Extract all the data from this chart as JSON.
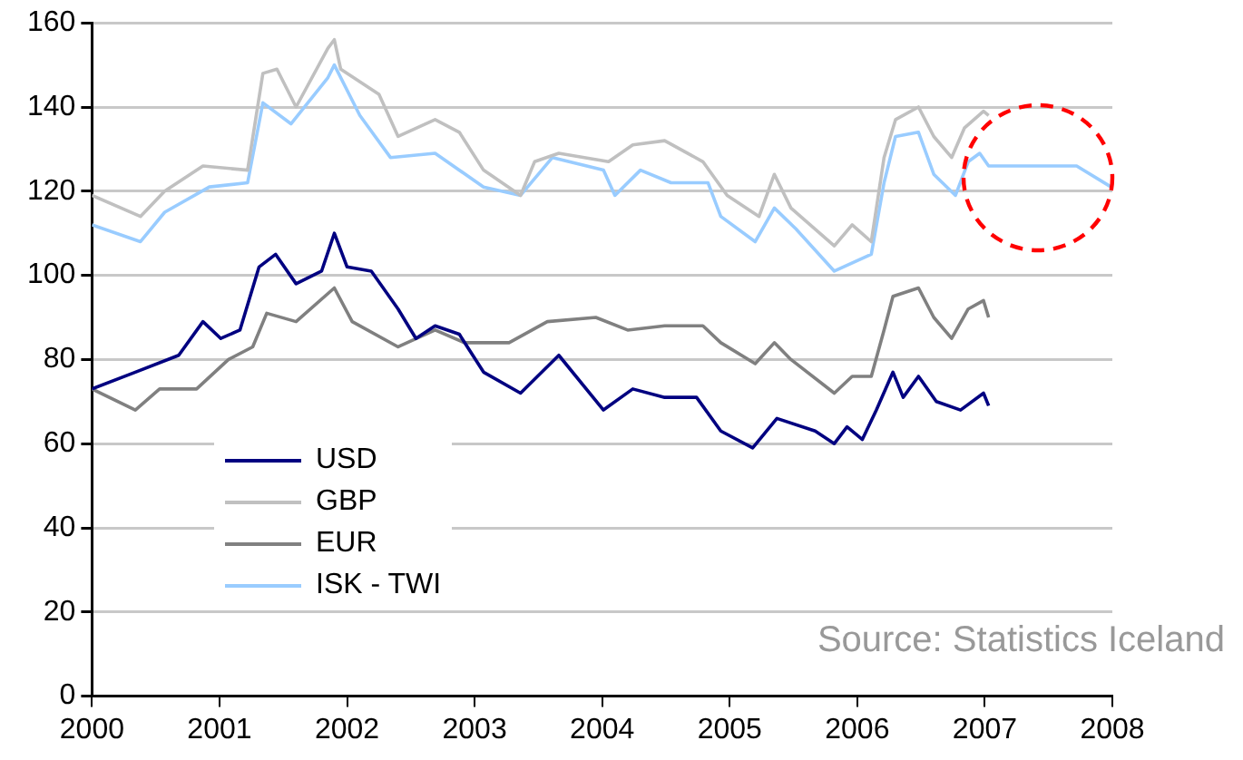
{
  "chart_data": {
    "type": "line",
    "xlim": [
      2000,
      2008
    ],
    "xticks": [
      2000,
      2001,
      2002,
      2003,
      2004,
      2005,
      2006,
      2007,
      2008
    ],
    "ylim": [
      0,
      160
    ],
    "yticks": [
      0,
      20,
      40,
      60,
      80,
      100,
      120,
      140,
      160
    ],
    "grid": "y",
    "legend": "bottom left",
    "marker": "none",
    "line_style": "solid",
    "annotations": [
      "Source: Statistics Iceland"
    ],
    "series": [
      {
        "name": "USD",
        "color": "#000080",
        "x": [
          2000,
          2000.34,
          2000.68,
          2000.87,
          2001.01,
          2001.16,
          2001.31,
          2001.44,
          2001.6,
          2001.8,
          2001.9,
          2002,
          2002.19,
          2002.4,
          2002.54,
          2002.69,
          2002.88,
          2003.07,
          2003.36,
          2003.66,
          2004.01,
          2004.24,
          2004.49,
          2004.74,
          2004.93,
          2005.18,
          2005.37,
          2005.67,
          2005.82,
          2005.92,
          2006.04,
          2006.15,
          2006.28,
          2006.36,
          2006.48,
          2006.62,
          2006.81,
          2006.99,
          2007.03
        ],
        "values": [
          73,
          77,
          81,
          89,
          85,
          87,
          102,
          105,
          98,
          101,
          110,
          102,
          101,
          92,
          85,
          88,
          86,
          77,
          72,
          81,
          68,
          73,
          71,
          71,
          63,
          59,
          66,
          63,
          60,
          64,
          61,
          68,
          77,
          71,
          76,
          70,
          68,
          72,
          69
        ]
      },
      {
        "name": "GBP",
        "color": "#c0c0c0",
        "x": [
          2000,
          2000.38,
          2000.57,
          2000.87,
          2001.22,
          2001.34,
          2001.45,
          2001.6,
          2001.85,
          2001.9,
          2001.95,
          2002.25,
          2002.4,
          2002.69,
          2002.88,
          2003.07,
          2003.36,
          2003.47,
          2003.66,
          2004.05,
          2004.24,
          2004.49,
          2004.79,
          2004.98,
          2005.23,
          2005.35,
          2005.48,
          2005.82,
          2005.96,
          2006.11,
          2006.21,
          2006.3,
          2006.48,
          2006.6,
          2006.74,
          2006.84,
          2006.99,
          2007.03
        ],
        "values": [
          119,
          114,
          120,
          126,
          125,
          148,
          149,
          140,
          154,
          156,
          149,
          143,
          133,
          137,
          134,
          125,
          119,
          127,
          129,
          127,
          131,
          132,
          127,
          119,
          114,
          124,
          116,
          107,
          112,
          108,
          128,
          137,
          140,
          133,
          128,
          135,
          139,
          138
        ]
      },
      {
        "name": "EUR",
        "color": "#808080",
        "x": [
          2000,
          2000.34,
          2000.53,
          2000.82,
          2001.07,
          2001.26,
          2001.37,
          2001.6,
          2001.9,
          2002.04,
          2002.4,
          2002.69,
          2002.92,
          2003.27,
          2003.57,
          2003.95,
          2004.2,
          2004.49,
          2004.79,
          2004.93,
          2005.2,
          2005.35,
          2005.48,
          2005.82,
          2005.96,
          2006.11,
          2006.21,
          2006.28,
          2006.48,
          2006.6,
          2006.74,
          2006.87,
          2006.99,
          2007.03
        ],
        "values": [
          73,
          68,
          73,
          73,
          80,
          83,
          91,
          89,
          97,
          89,
          83,
          87,
          84,
          84,
          89,
          90,
          87,
          88,
          88,
          84,
          79,
          84,
          80,
          72,
          76,
          76,
          87,
          95,
          97,
          90,
          85,
          92,
          94,
          90
        ]
      },
      {
        "name": "ISK - TWI",
        "color": "#99ccff",
        "x": [
          2000,
          2000.38,
          2000.57,
          2000.92,
          2001.22,
          2001.34,
          2001.56,
          2001.85,
          2001.9,
          2002.1,
          2002.34,
          2002.69,
          2003.07,
          2003.36,
          2003.61,
          2004.01,
          2004.1,
          2004.3,
          2004.54,
          2004.83,
          2004.93,
          2005.2,
          2005.35,
          2005.52,
          2005.82,
          2006.11,
          2006.21,
          2006.3,
          2006.48,
          2006.6,
          2006.77,
          2006.87,
          2006.96,
          2007.03,
          2007.72,
          2007.99
        ],
        "values": [
          112,
          108,
          115,
          121,
          122,
          141,
          136,
          147,
          150,
          138,
          128,
          129,
          121,
          119,
          128,
          125,
          119,
          125,
          122,
          122,
          114,
          108,
          116,
          111,
          101,
          105,
          122,
          133,
          134,
          124,
          119,
          127,
          129,
          126,
          126,
          121
        ]
      }
    ]
  }
}
